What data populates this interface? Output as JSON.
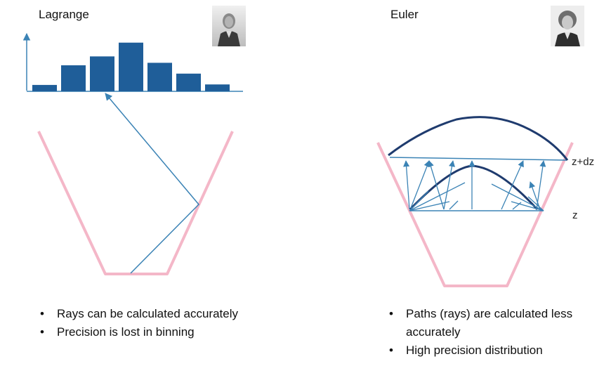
{
  "lagrange": {
    "title": "Lagrange",
    "portrait_icon": "portrait-lagrange-icon",
    "histogram_bar_heights": [
      0.13,
      0.53,
      0.71,
      0.99,
      0.58,
      0.36,
      0.14
    ],
    "bullets": [
      "Rays can be calculated accurately",
      "Precision is lost in binning"
    ]
  },
  "euler": {
    "title": "Euler",
    "portrait_icon": "portrait-euler-icon",
    "labels": {
      "upper": "z+dz",
      "lower": "z"
    },
    "bullets": [
      "Paths (rays) are calculated less accurately",
      "High precision distribution"
    ]
  },
  "colors": {
    "bar": "#1f5e99",
    "ray": "#3b83b5",
    "vessel": "#f4b7c8",
    "curve": "#1f3b6e"
  }
}
